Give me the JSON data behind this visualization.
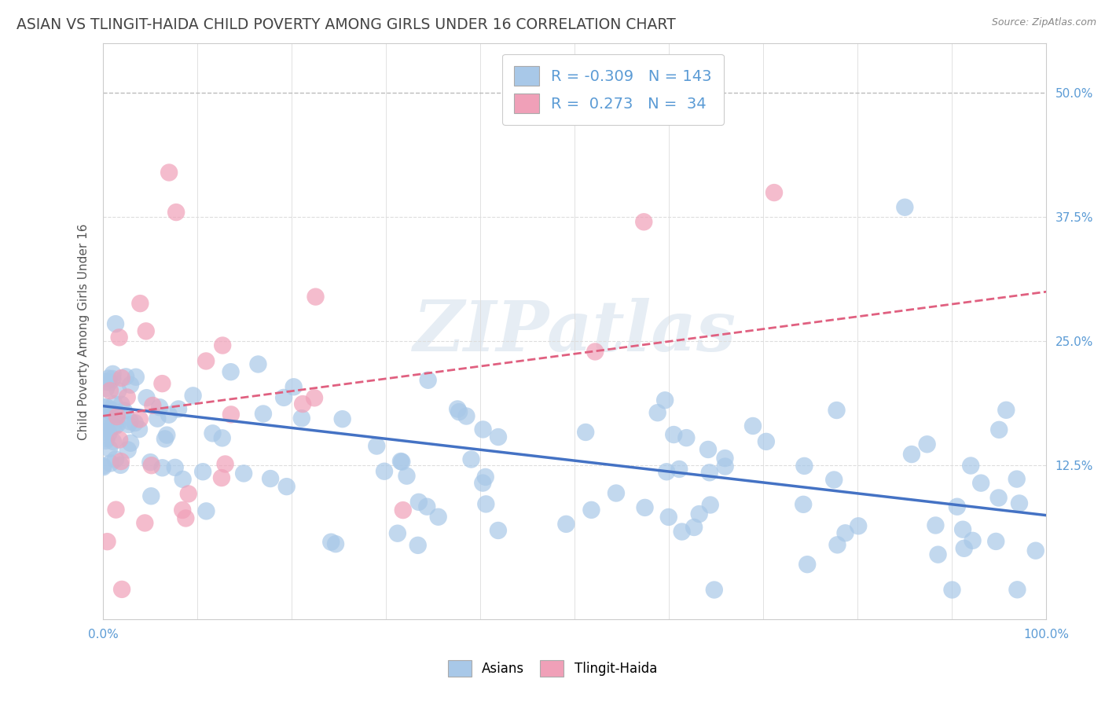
{
  "title": "ASIAN VS TLINGIT-HAIDA CHILD POVERTY AMONG GIRLS UNDER 16 CORRELATION CHART",
  "source": "Source: ZipAtlas.com",
  "ylabel": "Child Poverty Among Girls Under 16",
  "xlim": [
    0,
    100
  ],
  "ylim": [
    -3,
    55
  ],
  "asian_scatter_color": "#a8c8e8",
  "tlingit_scatter_color": "#f0a0b8",
  "asian_line_color": "#4472c4",
  "tlingit_line_color": "#e06080",
  "R_asian": -0.309,
  "N_asian": 143,
  "R_tlingit": 0.273,
  "N_tlingit": 34,
  "watermark_text": "ZIPatlas",
  "grid_color": "#dddddd",
  "text_color": "#5b9bd5",
  "title_color": "#555555",
  "asian_line_start_y": 18.5,
  "asian_line_end_y": 7.5,
  "tlingit_line_start_y": 17.5,
  "tlingit_line_end_y": 30.0
}
